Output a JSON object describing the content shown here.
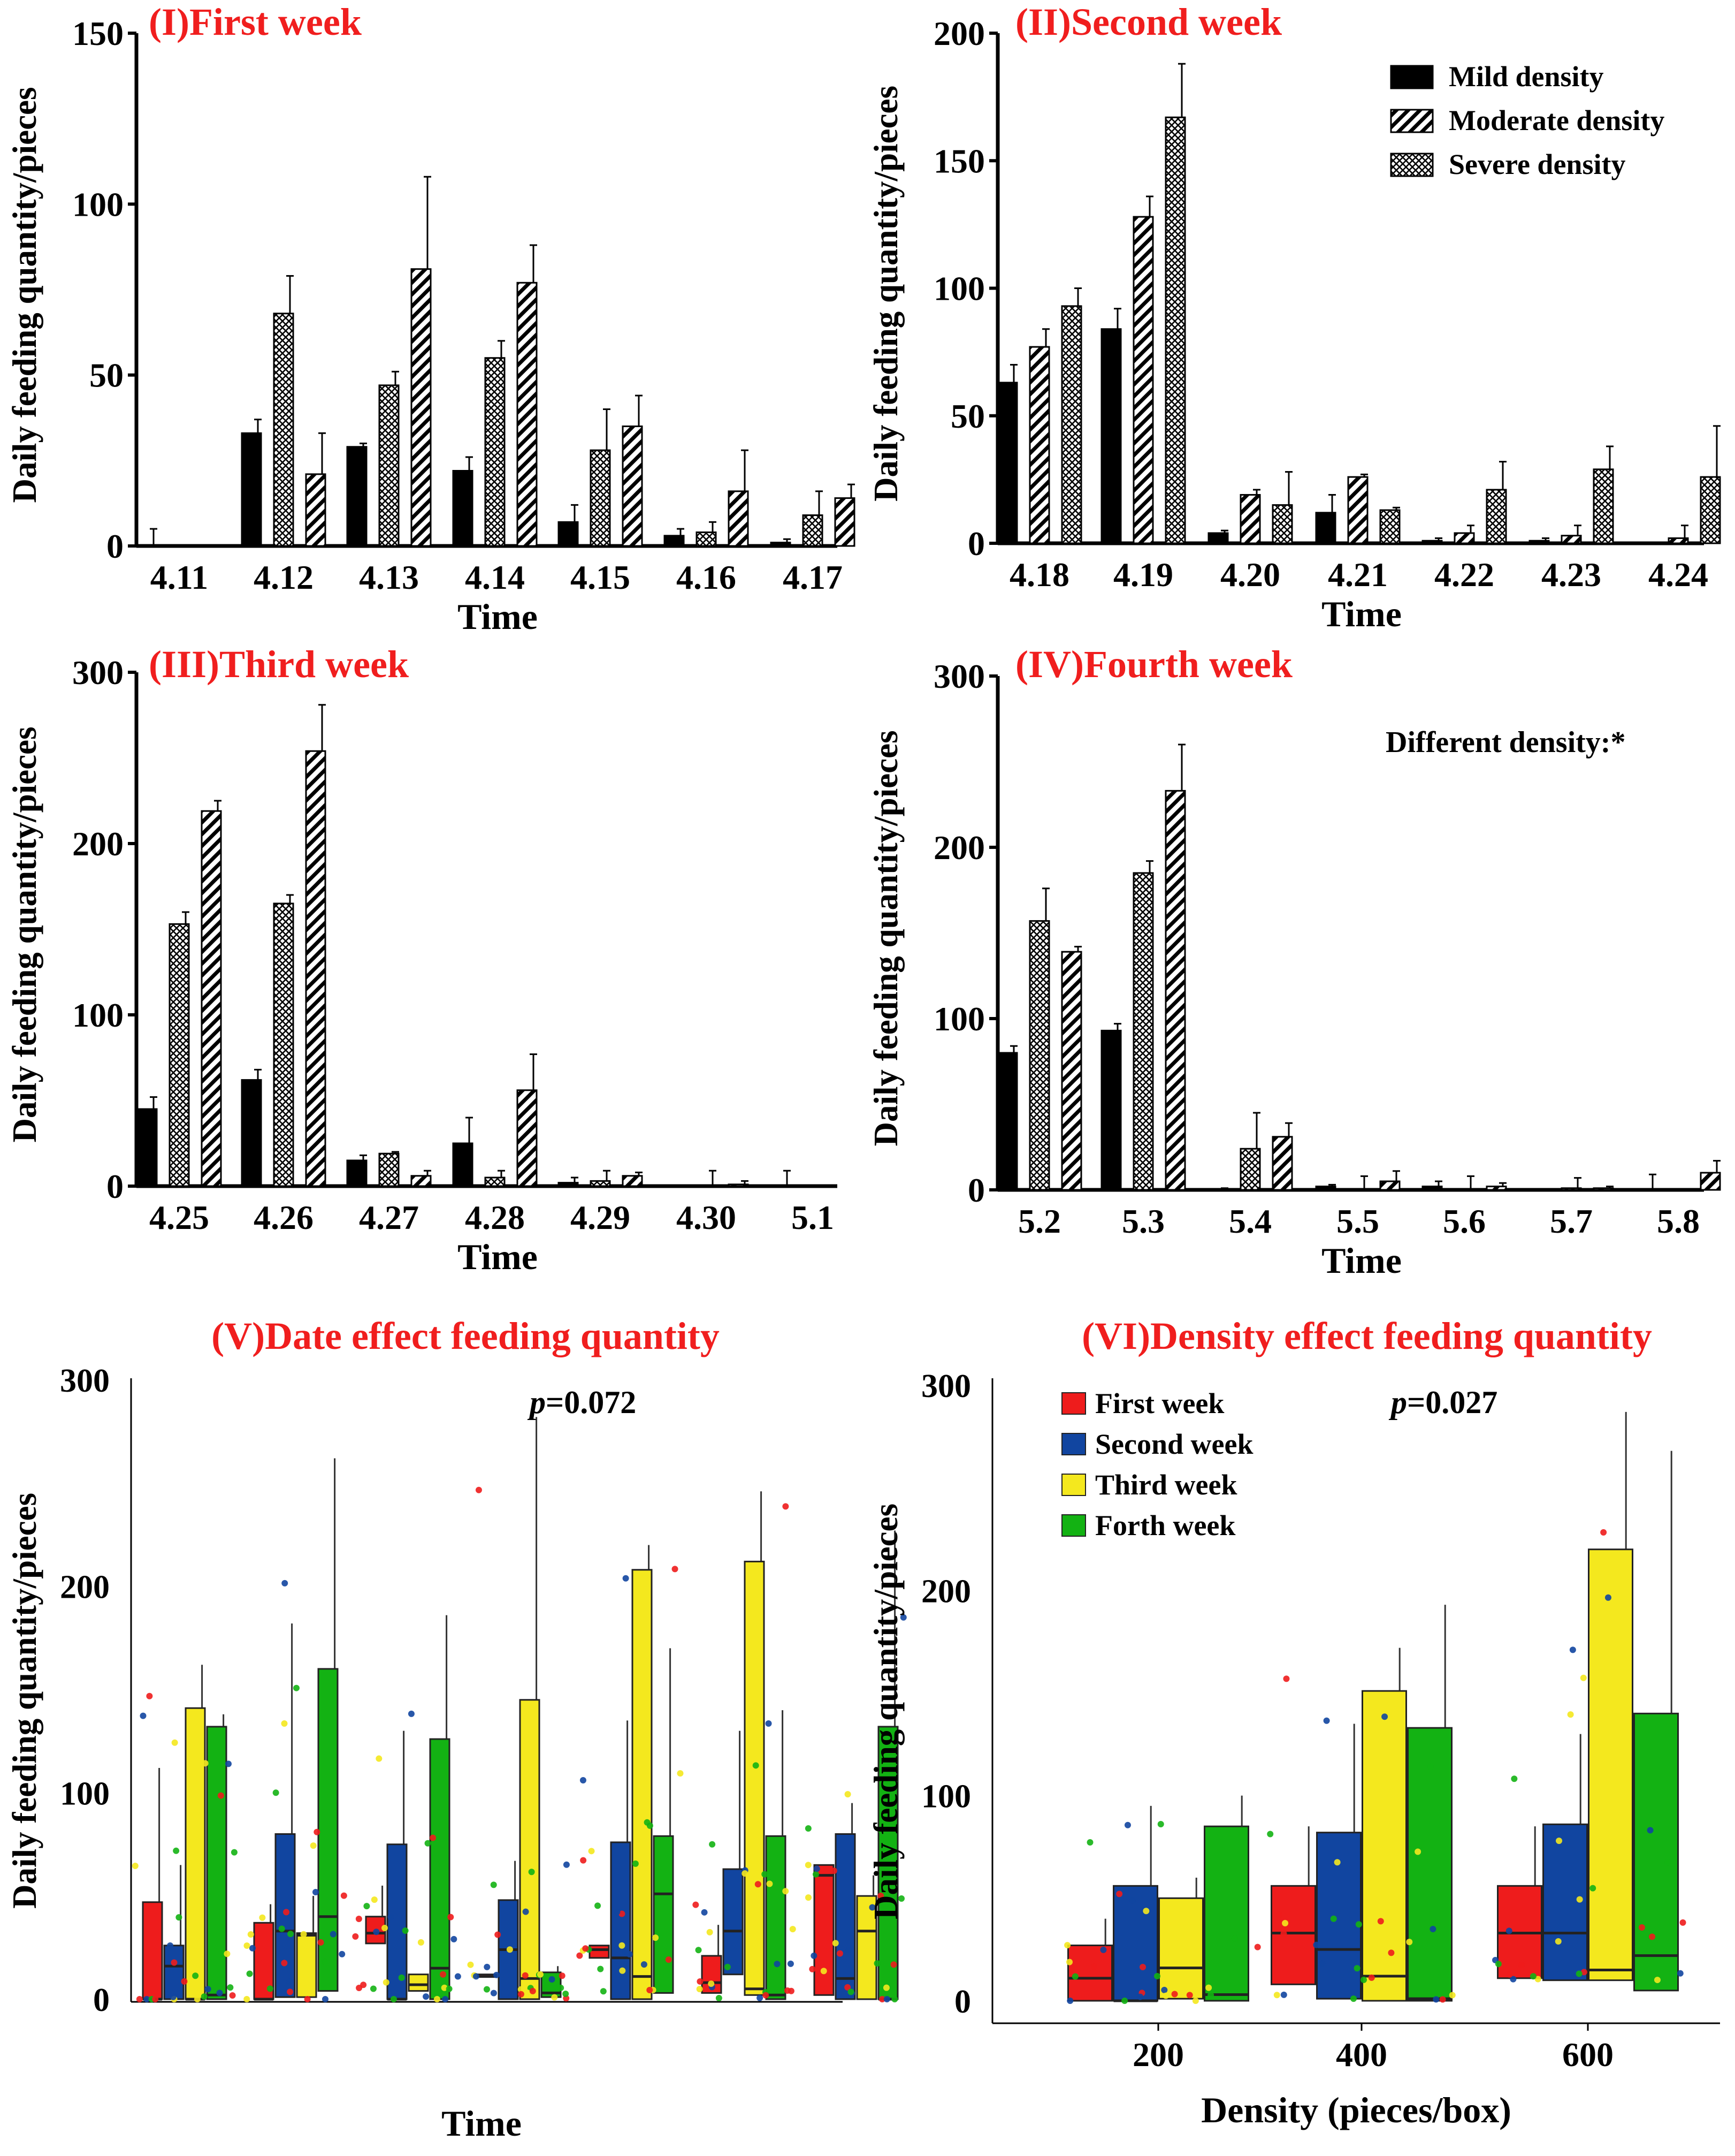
{
  "chart_data": [
    {
      "id": "p1",
      "type": "bar",
      "title": "(I)First week",
      "xlabel": "Time",
      "ylabel": "Daily feeding quantity/pieces",
      "ylim": [
        0,
        150
      ],
      "yticks": [
        0,
        50,
        100,
        150
      ],
      "categories": [
        "4.11",
        "4.12",
        "4.13",
        "4.14",
        "4.15",
        "4.16",
        "4.17"
      ],
      "series": [
        {
          "name": "Mild density",
          "values": [
            0,
            33,
            29,
            22,
            7,
            3,
            1
          ],
          "errors": [
            5,
            4,
            1,
            4,
            5,
            2,
            1
          ]
        },
        {
          "name": "Severe density",
          "values": [
            0,
            68,
            47,
            55,
            28,
            4,
            9
          ],
          "errors": [
            0,
            11,
            4,
            5,
            12,
            3,
            7
          ]
        },
        {
          "name": "Moderate density",
          "values": [
            0,
            21,
            81,
            77,
            35,
            16,
            14
          ],
          "errors": [
            0,
            12,
            27,
            11,
            9,
            12,
            4
          ]
        }
      ]
    },
    {
      "id": "p2",
      "type": "bar",
      "title": "(II)Second week",
      "xlabel": "Time",
      "ylabel": "Daily feeding quantity/pieces",
      "ylim": [
        0,
        200
      ],
      "yticks": [
        0,
        50,
        100,
        150,
        200
      ],
      "categories": [
        "4.18",
        "4.19",
        "4.20",
        "4.21",
        "4.22",
        "4.23",
        "4.24"
      ],
      "series": [
        {
          "name": "Mild density",
          "values": [
            63,
            84,
            4,
            12,
            1,
            1,
            0
          ],
          "errors": [
            7,
            8,
            1,
            7,
            1,
            1,
            0
          ]
        },
        {
          "name": "Moderate density",
          "values": [
            77,
            128,
            19,
            26,
            4,
            3,
            2
          ],
          "errors": [
            7,
            8,
            2,
            1,
            3,
            4,
            5
          ]
        },
        {
          "name": "Severe density",
          "values": [
            93,
            167,
            15,
            13,
            21,
            29,
            26
          ],
          "errors": [
            7,
            21,
            13,
            1,
            11,
            9,
            20
          ]
        }
      ],
      "legend": {
        "placement": "top-right",
        "entries": [
          "Mild density",
          "Moderate density",
          "Severe density"
        ]
      }
    },
    {
      "id": "p3",
      "type": "bar",
      "title": "(III)Third week",
      "xlabel": "Time",
      "ylabel": "Daily feeding quantity/pieces",
      "ylim": [
        0,
        300
      ],
      "yticks": [
        0,
        100,
        200,
        300
      ],
      "categories": [
        "4.25",
        "4.26",
        "4.27",
        "4.28",
        "4.29",
        "4.30",
        "5.1"
      ],
      "series": [
        {
          "name": "Mild density",
          "values": [
            45,
            62,
            15,
            25,
            2,
            0,
            0
          ],
          "errors": [
            7,
            6,
            3,
            15,
            3,
            0,
            9
          ]
        },
        {
          "name": "Severe density",
          "values": [
            153,
            165,
            19,
            5,
            3,
            0,
            0
          ],
          "errors": [
            7,
            5,
            1,
            4,
            6,
            9,
            0
          ]
        },
        {
          "name": "Moderate density",
          "values": [
            219,
            254,
            6,
            56,
            6,
            1,
            0
          ],
          "errors": [
            6,
            27,
            3,
            21,
            2,
            2,
            0
          ]
        }
      ]
    },
    {
      "id": "p4",
      "type": "bar",
      "title": "(IV)Fourth week",
      "xlabel": "Time",
      "ylabel": "Daily feeding quantity/pieces",
      "ylim": [
        0,
        300
      ],
      "yticks": [
        0,
        100,
        200,
        300
      ],
      "annotation": "Different density:*",
      "categories": [
        "5.2",
        "5.3",
        "5.4",
        "5.5",
        "5.6",
        "5.7",
        "5.8"
      ],
      "series": [
        {
          "name": "Mild density",
          "values": [
            80,
            93,
            0,
            2,
            2,
            0,
            0
          ],
          "errors": [
            4,
            4,
            1,
            1,
            3,
            0,
            9
          ]
        },
        {
          "name": "Severe density",
          "values": [
            157,
            185,
            24,
            0,
            0,
            1,
            0
          ],
          "errors": [
            19,
            7,
            21,
            8,
            8,
            6,
            0
          ]
        },
        {
          "name": "Moderate density",
          "values": [
            139,
            233,
            31,
            5,
            2,
            1,
            10
          ],
          "errors": [
            3,
            27,
            8,
            6,
            2,
            1,
            7
          ]
        }
      ]
    },
    {
      "id": "p5",
      "type": "box",
      "title": "(V)Date effect feeding quantity",
      "xlabel": "Time",
      "ylabel": "Daily feeding quantity/pieces",
      "annotation_italic": "p",
      "annotation_rest": "=0.072",
      "ylim": [
        0,
        300
      ],
      "yticks": [
        0,
        100,
        200,
        300
      ],
      "group_count": 7,
      "series": [
        {
          "name": "First week",
          "color": "#ee1c1c",
          "boxes": [
            [
              0,
              0,
              0,
              47,
              112
            ],
            [
              0,
              0,
              0,
              37,
              46
            ],
            [
              26,
              27,
              32,
              40,
              55
            ],
            [
              11,
              12,
              11,
              12,
              12
            ],
            [
              19,
              20,
              24,
              26,
              26
            ],
            [
              0,
              3,
              8,
              21,
              36
            ],
            [
              0,
              2,
              60,
              65,
              65
            ]
          ]
        },
        {
          "name": "Second week",
          "color": "#1145a0",
          "boxes": [
            [
              0,
              0,
              16,
              26,
              65
            ],
            [
              0,
              1,
              33,
              80,
              182
            ],
            [
              0,
              0,
              0,
              75,
              130
            ],
            [
              0,
              0,
              24,
              48,
              67
            ],
            [
              0,
              0,
              20,
              76,
              135
            ],
            [
              0,
              12,
              33,
              63,
              130
            ],
            [
              0,
              0,
              10,
              80,
              95
            ]
          ]
        },
        {
          "name": "Third week",
          "color": "#f4e81e",
          "boxes": [
            [
              0,
              0,
              0,
              141,
              162
            ],
            [
              0,
              1,
              31,
              32,
              50
            ],
            [
              0,
              4,
              7,
              12,
              12
            ],
            [
              0,
              0,
              10,
              145,
              282
            ],
            [
              0,
              0,
              11,
              208,
              220
            ],
            [
              0,
              2,
              5,
              212,
              246
            ],
            [
              0,
              0,
              33,
              50,
              60
            ]
          ]
        },
        {
          "name": "Forth week",
          "color": "#13b213",
          "boxes": [
            [
              0,
              0,
              2,
              132,
              138
            ],
            [
              0,
              4,
              40,
              160,
              262
            ],
            [
              0,
              0,
              15,
              126,
              186
            ],
            [
              0,
              1,
              3,
              13,
              16
            ],
            [
              0,
              3,
              51,
              79,
              170
            ],
            [
              0,
              0,
              2,
              79,
              140
            ],
            [
              0,
              0,
              0,
              132,
              227
            ]
          ]
        }
      ]
    },
    {
      "id": "p6",
      "type": "box",
      "title": "(VI)Density effect feeding quantity",
      "xlabel": "Density (pieces/box)",
      "ylabel": "Daily feeding quantity/pieces",
      "annotation_italic": "p",
      "annotation_rest": "=0.027",
      "ylim": [
        0,
        300
      ],
      "yticks": [
        0,
        100,
        200,
        300
      ],
      "categories": [
        "200",
        "400",
        "600"
      ],
      "series": [
        {
          "name": "First week",
          "color": "#ee1c1c",
          "boxes": [
            [
              0,
              0,
              11,
              27,
              40
            ],
            [
              6,
              8,
              33,
              56,
              85
            ],
            [
              0,
              11,
              33,
              56,
              85
            ]
          ]
        },
        {
          "name": "Second week",
          "color": "#1145a0",
          "boxes": [
            [
              0,
              0,
              0,
              56,
              95
            ],
            [
              0,
              1,
              25,
              82,
              135
            ],
            [
              0,
              10,
              33,
              86,
              130
            ]
          ]
        },
        {
          "name": "Third week",
          "color": "#f4e81e",
          "boxes": [
            [
              0,
              1,
              16,
              50,
              60
            ],
            [
              0,
              0,
              12,
              151,
              172
            ],
            [
              0,
              10,
              15,
              220,
              287
            ]
          ]
        },
        {
          "name": "Forth week",
          "color": "#13b213",
          "boxes": [
            [
              0,
              0,
              3,
              85,
              100
            ],
            [
              0,
              0,
              1,
              133,
              193
            ],
            [
              0,
              5,
              22,
              140,
              268
            ]
          ]
        }
      ],
      "legend": {
        "placement": "top-left",
        "entries": [
          "First week",
          "Second week",
          "Third week",
          "Forth week"
        ]
      }
    }
  ]
}
